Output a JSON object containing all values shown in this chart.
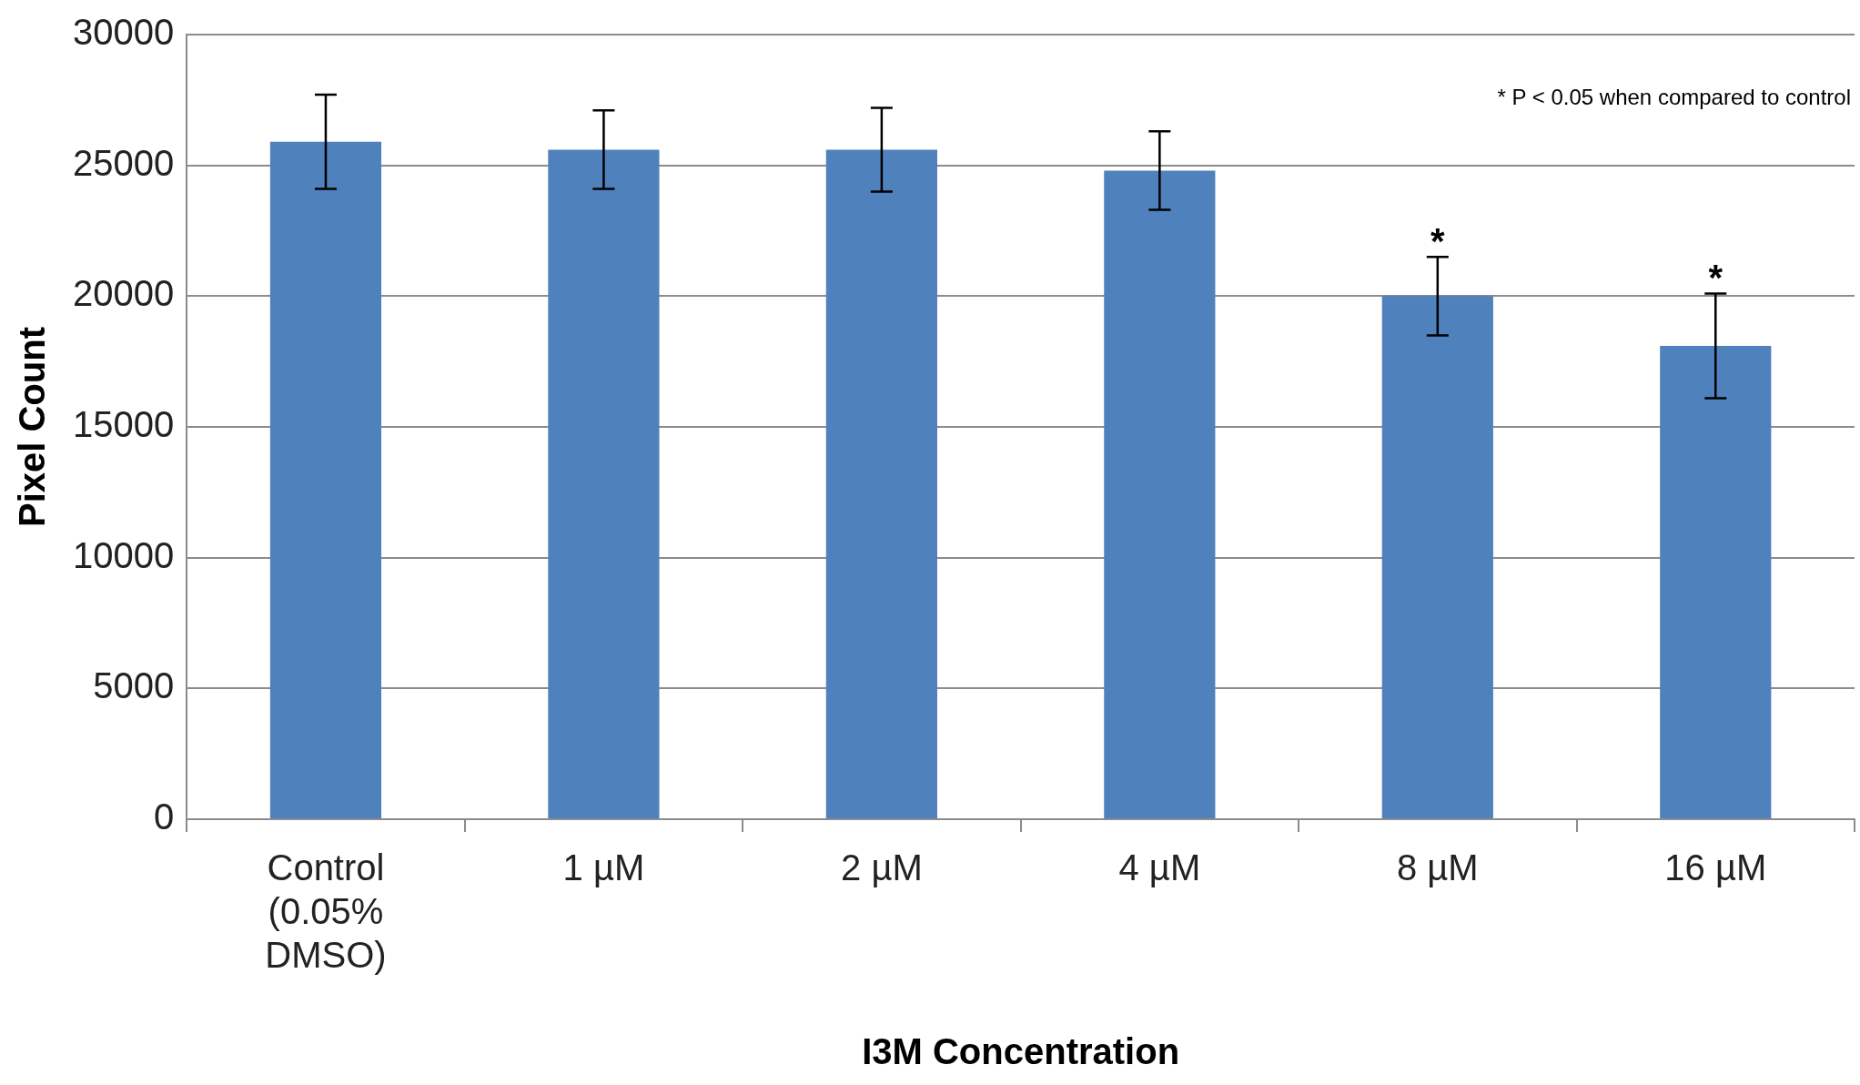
{
  "chart_data": {
    "type": "bar",
    "xlabel": "I3M Concentration",
    "ylabel": "Pixel Count",
    "categories": [
      "Control (0.05% DMSO)",
      "1 µM",
      "2 µM",
      "4 µM",
      "8 µM",
      "16 µM"
    ],
    "values": [
      25900,
      25600,
      25600,
      24800,
      20000,
      18100
    ],
    "errors": [
      1800,
      1500,
      1600,
      1500,
      1500,
      2000
    ],
    "color": "#4f81bd",
    "ylim": [
      0,
      30000
    ],
    "yticks": [
      0,
      5000,
      10000,
      15000,
      20000,
      25000,
      30000
    ],
    "grid": "y",
    "legend": false,
    "annotations": [
      "* P < 0.05 when compared to control",
      {
        "text": "*",
        "x": "8 µM",
        "y": 21500
      },
      {
        "text": "*",
        "x": "16 µM",
        "y": 20100
      }
    ]
  }
}
